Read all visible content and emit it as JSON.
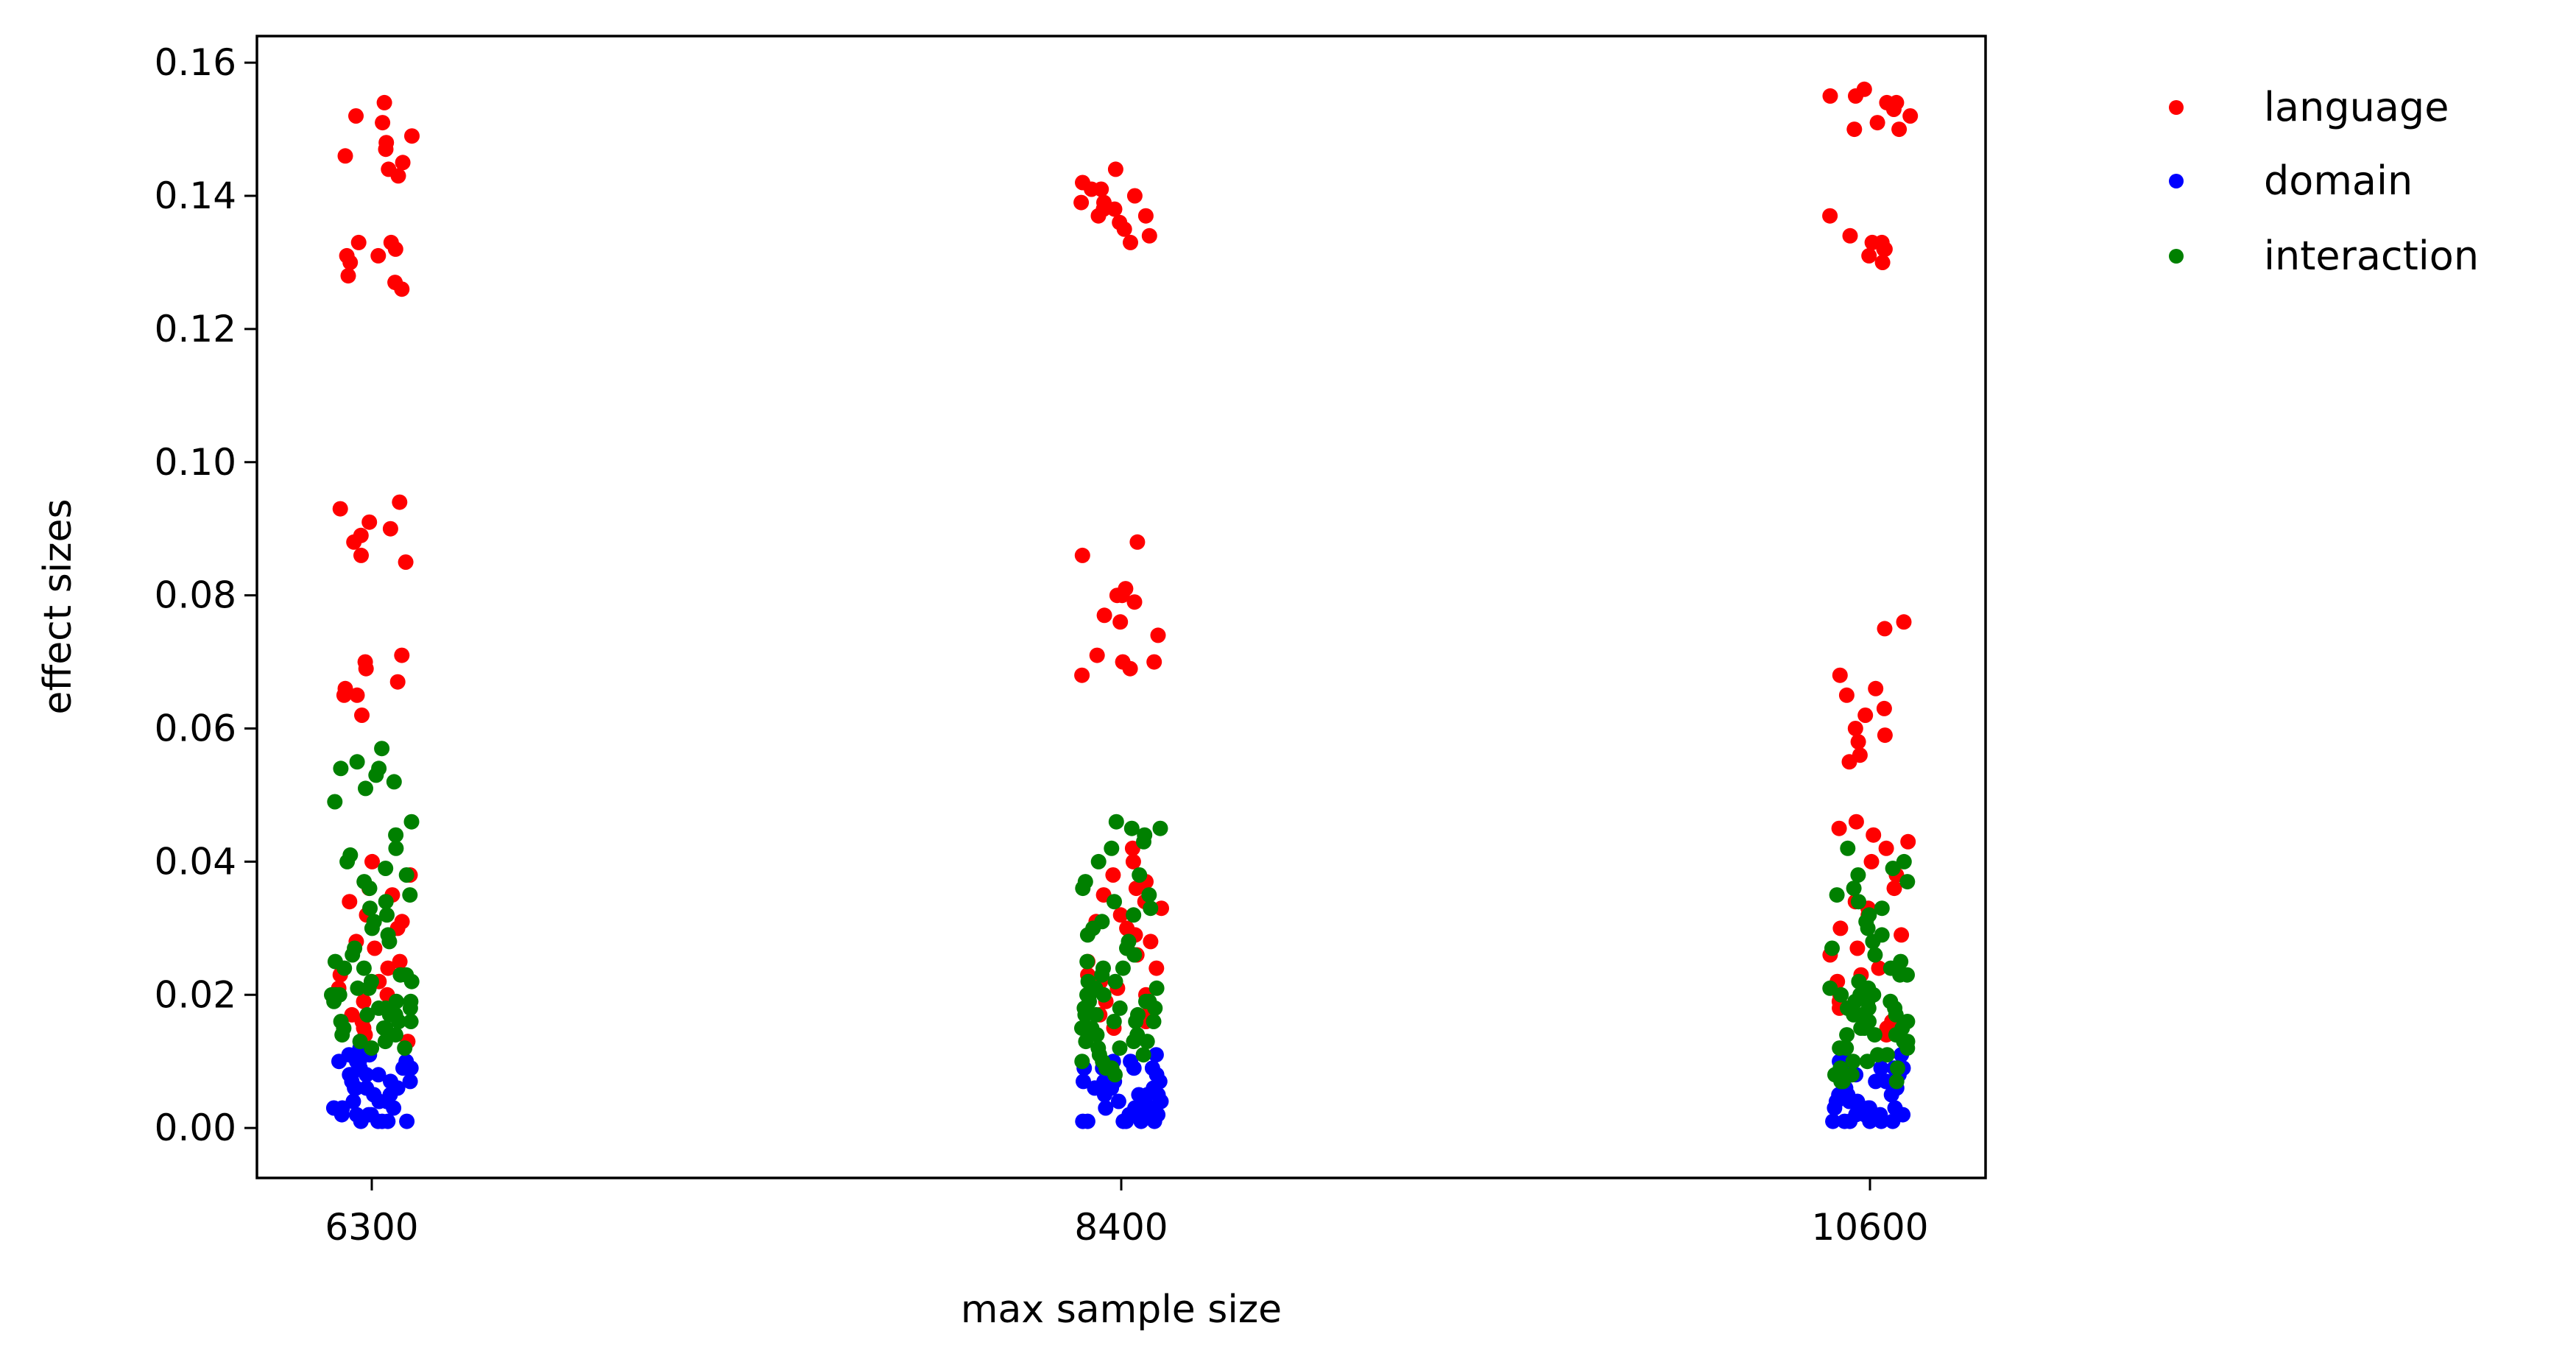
{
  "chart_data": {
    "type": "scatter",
    "title": "",
    "xlabel": "max sample size",
    "ylabel": "effect sizes",
    "categories": [
      "6300",
      "8400",
      "10600"
    ],
    "ylim": [
      -0.0075,
      0.164
    ],
    "yticks": [
      0.0,
      0.02,
      0.04,
      0.06,
      0.08,
      0.1,
      0.12,
      0.14,
      0.16
    ],
    "ytick_labels": [
      "0.00",
      "0.02",
      "0.04",
      "0.06",
      "0.08",
      "0.10",
      "0.12",
      "0.14",
      "0.16"
    ],
    "grid": false,
    "legend": "outside-top-right",
    "series": [
      {
        "name": "language",
        "color": "#ff0000",
        "values": {
          "6300": [
            0.154,
            0.152,
            0.151,
            0.149,
            0.148,
            0.147,
            0.146,
            0.145,
            0.144,
            0.143,
            0.133,
            0.133,
            0.132,
            0.131,
            0.131,
            0.13,
            0.128,
            0.127,
            0.126,
            0.094,
            0.093,
            0.091,
            0.09,
            0.089,
            0.088,
            0.086,
            0.085,
            0.071,
            0.07,
            0.069,
            0.067,
            0.066,
            0.065,
            0.065,
            0.062,
            0.04,
            0.038,
            0.036,
            0.035,
            0.034,
            0.032,
            0.031,
            0.03,
            0.028,
            0.027,
            0.025,
            0.024,
            0.023,
            0.022,
            0.021,
            0.02,
            0.019,
            0.018,
            0.017,
            0.016,
            0.015,
            0.014,
            0.013
          ],
          "8400": [
            0.144,
            0.142,
            0.141,
            0.141,
            0.14,
            0.139,
            0.139,
            0.138,
            0.138,
            0.137,
            0.137,
            0.136,
            0.135,
            0.134,
            0.133,
            0.088,
            0.086,
            0.081,
            0.08,
            0.08,
            0.079,
            0.077,
            0.076,
            0.074,
            0.071,
            0.07,
            0.07,
            0.069,
            0.068,
            0.042,
            0.04,
            0.038,
            0.037,
            0.036,
            0.035,
            0.034,
            0.033,
            0.032,
            0.031,
            0.03,
            0.029,
            0.028,
            0.027,
            0.026,
            0.025,
            0.024,
            0.023,
            0.022,
            0.021,
            0.02,
            0.019,
            0.018,
            0.017,
            0.016,
            0.015
          ],
          "10600": [
            0.156,
            0.155,
            0.155,
            0.154,
            0.154,
            0.153,
            0.152,
            0.151,
            0.15,
            0.15,
            0.137,
            0.134,
            0.133,
            0.133,
            0.132,
            0.132,
            0.131,
            0.13,
            0.076,
            0.075,
            0.068,
            0.066,
            0.065,
            0.063,
            0.062,
            0.06,
            0.059,
            0.058,
            0.056,
            0.055,
            0.046,
            0.045,
            0.044,
            0.043,
            0.042,
            0.04,
            0.038,
            0.036,
            0.034,
            0.033,
            0.032,
            0.03,
            0.029,
            0.027,
            0.026,
            0.024,
            0.023,
            0.022,
            0.02,
            0.019,
            0.018,
            0.016,
            0.015,
            0.014
          ]
        }
      },
      {
        "name": "domain",
        "color": "#0000ff",
        "values": {
          "6300": [
            0.012,
            0.011,
            0.011,
            0.01,
            0.01,
            0.01,
            0.009,
            0.009,
            0.009,
            0.008,
            0.008,
            0.008,
            0.007,
            0.007,
            0.007,
            0.006,
            0.006,
            0.006,
            0.005,
            0.005,
            0.005,
            0.004,
            0.004,
            0.004,
            0.003,
            0.003,
            0.003,
            0.002,
            0.002,
            0.002,
            0.001,
            0.001,
            0.001,
            0.001,
            0.01,
            0.008,
            0.006,
            0.004,
            0.002,
            0.001
          ],
          "8400": [
            0.011,
            0.01,
            0.01,
            0.009,
            0.009,
            0.009,
            0.008,
            0.008,
            0.008,
            0.007,
            0.007,
            0.007,
            0.006,
            0.006,
            0.006,
            0.005,
            0.005,
            0.005,
            0.004,
            0.004,
            0.004,
            0.003,
            0.003,
            0.003,
            0.002,
            0.002,
            0.002,
            0.001,
            0.001,
            0.001,
            0.001,
            0.001,
            0.009,
            0.007,
            0.005,
            0.003,
            0.002,
            0.001
          ],
          "10600": [
            0.011,
            0.01,
            0.01,
            0.009,
            0.009,
            0.009,
            0.008,
            0.008,
            0.008,
            0.007,
            0.007,
            0.007,
            0.006,
            0.006,
            0.006,
            0.005,
            0.005,
            0.005,
            0.004,
            0.004,
            0.004,
            0.003,
            0.003,
            0.003,
            0.002,
            0.002,
            0.002,
            0.001,
            0.001,
            0.001,
            0.001,
            0.001,
            0.009,
            0.007,
            0.005,
            0.003,
            0.002,
            0.001
          ]
        }
      },
      {
        "name": "interaction",
        "color": "#008000",
        "values": {
          "6300": [
            0.057,
            0.055,
            0.054,
            0.054,
            0.053,
            0.052,
            0.051,
            0.049,
            0.046,
            0.044,
            0.042,
            0.041,
            0.04,
            0.039,
            0.038,
            0.037,
            0.036,
            0.035,
            0.034,
            0.033,
            0.032,
            0.031,
            0.03,
            0.029,
            0.028,
            0.027,
            0.026,
            0.025,
            0.024,
            0.023,
            0.022,
            0.021,
            0.02,
            0.02,
            0.019,
            0.019,
            0.018,
            0.018,
            0.017,
            0.017,
            0.016,
            0.016,
            0.015,
            0.015,
            0.014,
            0.014,
            0.013,
            0.013,
            0.012,
            0.012,
            0.021,
            0.019,
            0.018,
            0.016,
            0.015,
            0.022,
            0.024,
            0.017,
            0.02,
            0.023
          ],
          "8400": [
            0.046,
            0.045,
            0.045,
            0.044,
            0.043,
            0.042,
            0.04,
            0.038,
            0.037,
            0.036,
            0.035,
            0.034,
            0.033,
            0.032,
            0.031,
            0.03,
            0.029,
            0.028,
            0.027,
            0.026,
            0.025,
            0.024,
            0.023,
            0.022,
            0.021,
            0.02,
            0.02,
            0.019,
            0.019,
            0.018,
            0.018,
            0.017,
            0.017,
            0.016,
            0.016,
            0.015,
            0.015,
            0.014,
            0.014,
            0.013,
            0.013,
            0.012,
            0.012,
            0.011,
            0.011,
            0.01,
            0.01,
            0.009,
            0.009,
            0.008,
            0.022,
            0.02,
            0.018,
            0.016,
            0.015,
            0.024,
            0.021,
            0.019,
            0.017,
            0.013
          ],
          "10600": [
            0.042,
            0.04,
            0.039,
            0.038,
            0.037,
            0.036,
            0.035,
            0.034,
            0.033,
            0.032,
            0.031,
            0.03,
            0.029,
            0.028,
            0.027,
            0.026,
            0.025,
            0.024,
            0.023,
            0.022,
            0.021,
            0.02,
            0.02,
            0.019,
            0.019,
            0.018,
            0.018,
            0.017,
            0.017,
            0.016,
            0.016,
            0.015,
            0.015,
            0.014,
            0.014,
            0.013,
            0.013,
            0.012,
            0.012,
            0.011,
            0.011,
            0.01,
            0.01,
            0.009,
            0.009,
            0.008,
            0.008,
            0.007,
            0.007,
            0.007,
            0.021,
            0.019,
            0.017,
            0.015,
            0.014,
            0.023,
            0.02,
            0.018,
            0.016,
            0.012
          ]
        }
      }
    ]
  }
}
